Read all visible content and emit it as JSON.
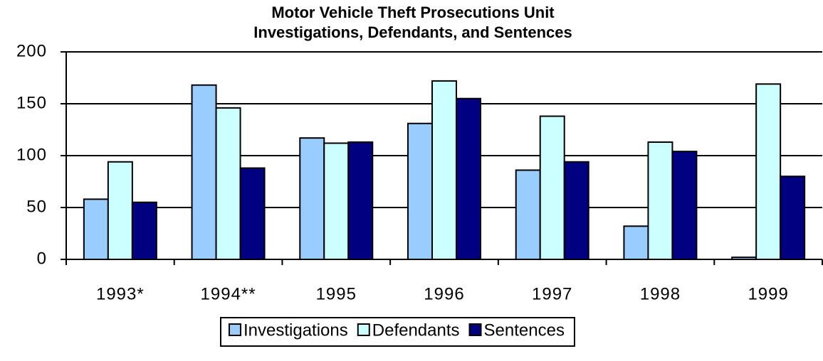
{
  "chart_data": {
    "type": "bar",
    "title": [
      "Motor Vehicle Theft Prosecutions Unit",
      "Investigations, Defendants, and Sentences"
    ],
    "categories": [
      "1993*",
      "1994**",
      "1995",
      "1996",
      "1997",
      "1998",
      "1999"
    ],
    "series": [
      {
        "name": "Investigations",
        "color": "#99ccff",
        "values": [
          58,
          168,
          117,
          131,
          86,
          32,
          2
        ]
      },
      {
        "name": "Defendants",
        "color": "#ccffff",
        "values": [
          94,
          146,
          112,
          172,
          138,
          113,
          169
        ]
      },
      {
        "name": "Sentences",
        "color": "#000080",
        "values": [
          55,
          88,
          113,
          155,
          94,
          104,
          80
        ]
      }
    ],
    "ylim": [
      0,
      200
    ],
    "yticks": [
      0,
      50,
      100,
      150,
      200
    ],
    "grid": true,
    "legend": "bottom"
  }
}
